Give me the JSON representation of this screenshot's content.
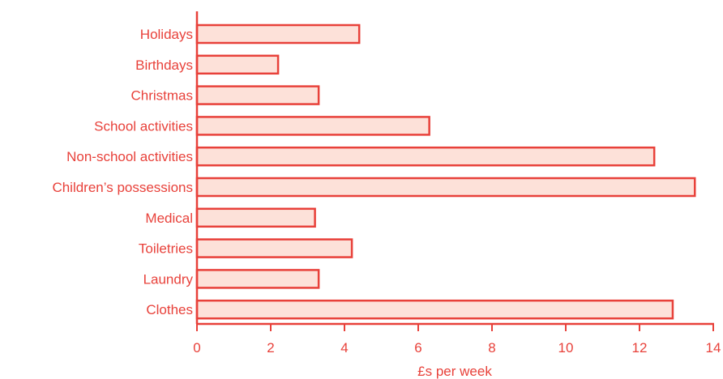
{
  "colors": {
    "accent": "#e8413a",
    "bar_fill": "#fde1d9",
    "text": "#e8413a"
  },
  "chart_data": {
    "type": "bar",
    "orientation": "horizontal",
    "title": "",
    "xlabel": "£s per week",
    "ylabel": "",
    "categories": [
      "Holidays",
      "Birthdays",
      "Christmas",
      "School activities",
      "Non-school activities",
      "Children’s possessions",
      "Medical",
      "Toiletries",
      "Laundry",
      "Clothes"
    ],
    "values": [
      4.4,
      2.2,
      3.3,
      6.3,
      12.4,
      13.5,
      3.2,
      4.2,
      3.3,
      12.9
    ],
    "xlim": [
      0,
      14
    ],
    "xticks": [
      0,
      2,
      4,
      6,
      8,
      10,
      12,
      14
    ],
    "grid": false,
    "legend": "none"
  }
}
